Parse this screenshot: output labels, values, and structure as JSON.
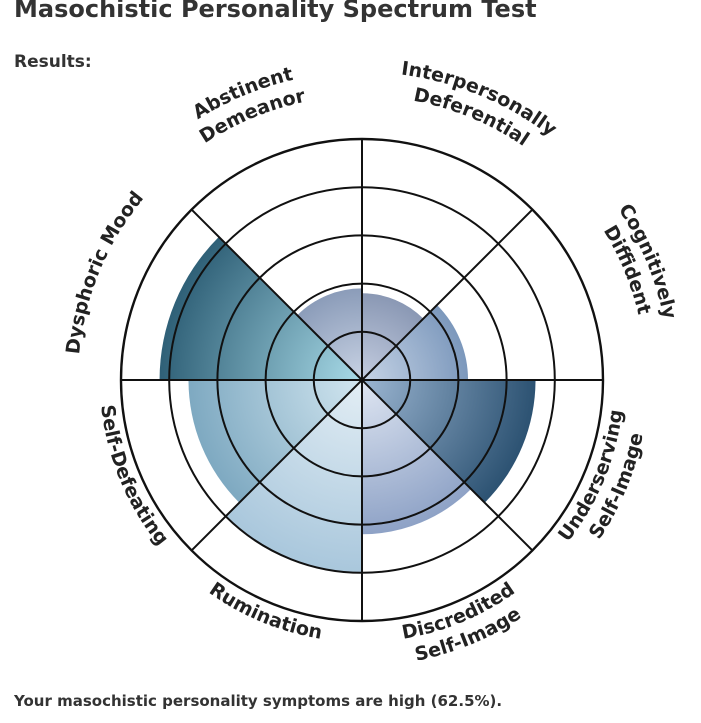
{
  "page": {
    "title": "Masochistic Personality Spectrum Test",
    "results_label": "Results:",
    "summary_text": "Your masochistic personality symptoms are high (62.5%)."
  },
  "chart_data": {
    "type": "polar-area",
    "title": "",
    "rings": 5,
    "max": 5,
    "categories": [
      {
        "name": "Interpersonally Deferential",
        "lines": [
          "Interpersonally",
          "Deferential"
        ],
        "value": 1.8
      },
      {
        "name": "Cognitively Diffident",
        "lines": [
          "Cognitively",
          "Diffident"
        ],
        "value": 2.2
      },
      {
        "name": "Underserving Self-Image",
        "lines": [
          "Underserving",
          "Self-Image"
        ],
        "value": 3.6
      },
      {
        "name": "Discredited Self-Image",
        "lines": [
          "Discredited",
          "Self-Image"
        ],
        "value": 3.2
      },
      {
        "name": "Rumination",
        "lines": [
          "Rumination"
        ],
        "value": 4.0
      },
      {
        "name": "Self-Defeating",
        "lines": [
          "Self-Defeating"
        ],
        "value": 3.6
      },
      {
        "name": "Dysphoric Mood",
        "lines": [
          "Dysphoric Mood"
        ],
        "value": 4.2
      },
      {
        "name": "Abstinent Demeanor",
        "lines": [
          "Abstinent",
          "Demeanor"
        ],
        "value": 1.9
      }
    ],
    "colors": {
      "grid": "#111111",
      "outer_ring": "#111111",
      "wedge_dark": "#2f6077",
      "wedge_mid": "#7fb0c4",
      "wedge_light": "#cfe2ec",
      "wedge_slate": "#8a98b4"
    }
  }
}
